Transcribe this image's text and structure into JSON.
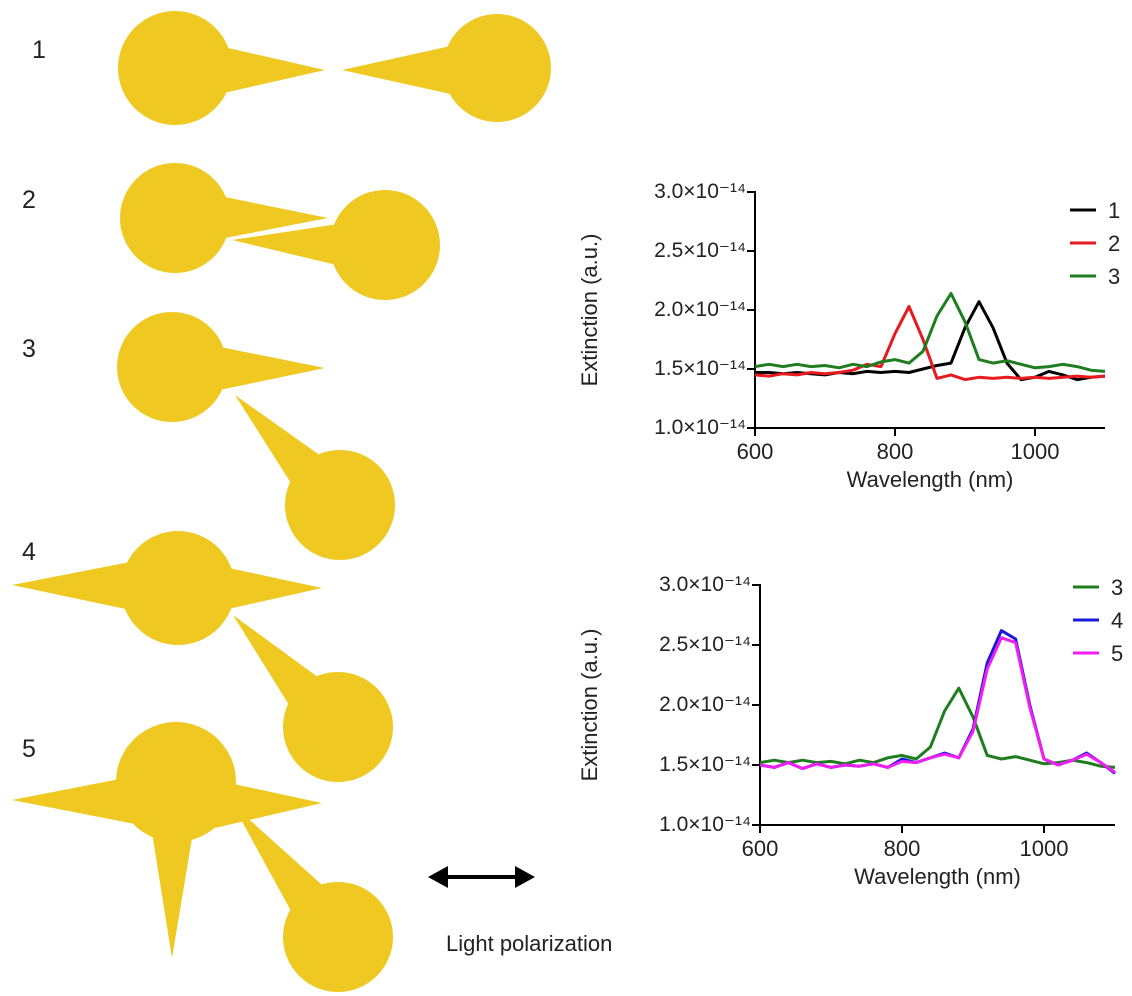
{
  "structures": {
    "labels": [
      "1",
      "2",
      "3",
      "4",
      "5"
    ]
  },
  "polarization_label": "Light polarization",
  "chart_data": [
    {
      "type": "line",
      "xlabel": "Wavelength (nm)",
      "ylabel": "Extinction (a.u.)",
      "x": [
        600,
        620,
        640,
        660,
        680,
        700,
        720,
        740,
        760,
        780,
        800,
        820,
        840,
        860,
        880,
        900,
        920,
        940,
        960,
        980,
        1000,
        1020,
        1040,
        1060,
        1080,
        1100
      ],
      "xlim": [
        600,
        1100
      ],
      "xticks": [
        600,
        800,
        1000
      ],
      "ylim": [
        1e-14,
        3e-14
      ],
      "yticks": [
        {
          "value": 1e-14,
          "label": "1.0×10⁻¹⁴"
        },
        {
          "value": 1.5e-14,
          "label": "1.5×10⁻¹⁴"
        },
        {
          "value": 2e-14,
          "label": "2.0×10⁻¹⁴"
        },
        {
          "value": 2.5e-14,
          "label": "2.5×10⁻¹⁴"
        },
        {
          "value": 3e-14,
          "label": "3.0×10⁻¹⁴"
        }
      ],
      "series": [
        {
          "name": "1",
          "color": "#000000",
          "values": [
            1.47e-14,
            1.47e-14,
            1.46e-14,
            1.47e-14,
            1.46e-14,
            1.45e-14,
            1.47e-14,
            1.46e-14,
            1.48e-14,
            1.47e-14,
            1.48e-14,
            1.47e-14,
            1.5e-14,
            1.53e-14,
            1.55e-14,
            1.85e-14,
            2.07e-14,
            1.85e-14,
            1.55e-14,
            1.41e-14,
            1.43e-14,
            1.48e-14,
            1.45e-14,
            1.41e-14,
            1.43e-14,
            1.44e-14
          ]
        },
        {
          "name": "2",
          "color": "#e8191f",
          "values": [
            1.45e-14,
            1.44e-14,
            1.46e-14,
            1.45e-14,
            1.47e-14,
            1.46e-14,
            1.47e-14,
            1.49e-14,
            1.54e-14,
            1.52e-14,
            1.8e-14,
            2.03e-14,
            1.75e-14,
            1.42e-14,
            1.45e-14,
            1.41e-14,
            1.43e-14,
            1.42e-14,
            1.43e-14,
            1.42e-14,
            1.43e-14,
            1.42e-14,
            1.43e-14,
            1.44e-14,
            1.43e-14,
            1.44e-14
          ]
        },
        {
          "name": "3",
          "color": "#1e7d1e",
          "values": [
            1.52e-14,
            1.54e-14,
            1.52e-14,
            1.54e-14,
            1.52e-14,
            1.53e-14,
            1.51e-14,
            1.54e-14,
            1.52e-14,
            1.56e-14,
            1.58e-14,
            1.55e-14,
            1.65e-14,
            1.95e-14,
            2.14e-14,
            1.9e-14,
            1.58e-14,
            1.55e-14,
            1.57e-14,
            1.54e-14,
            1.51e-14,
            1.52e-14,
            1.54e-14,
            1.52e-14,
            1.49e-14,
            1.48e-14
          ]
        }
      ]
    },
    {
      "type": "line",
      "xlabel": "Wavelength (nm)",
      "ylabel": "Extinction (a.u.)",
      "x": [
        600,
        620,
        640,
        660,
        680,
        700,
        720,
        740,
        760,
        780,
        800,
        820,
        840,
        860,
        880,
        900,
        920,
        940,
        960,
        980,
        1000,
        1020,
        1040,
        1060,
        1080,
        1100
      ],
      "xlim": [
        600,
        1100
      ],
      "xticks": [
        600,
        800,
        1000
      ],
      "ylim": [
        1e-14,
        3e-14
      ],
      "yticks": [
        {
          "value": 1e-14,
          "label": "1.0×10⁻¹⁴"
        },
        {
          "value": 1.5e-14,
          "label": "1.5×10⁻¹⁴"
        },
        {
          "value": 2e-14,
          "label": "2.0×10⁻¹⁴"
        },
        {
          "value": 2.5e-14,
          "label": "2.5×10⁻¹⁴"
        },
        {
          "value": 3e-14,
          "label": "3.0×10⁻¹⁴"
        }
      ],
      "series": [
        {
          "name": "3",
          "color": "#1e7d1e",
          "values": [
            1.52e-14,
            1.54e-14,
            1.52e-14,
            1.54e-14,
            1.52e-14,
            1.53e-14,
            1.51e-14,
            1.54e-14,
            1.52e-14,
            1.56e-14,
            1.58e-14,
            1.55e-14,
            1.65e-14,
            1.95e-14,
            2.14e-14,
            1.9e-14,
            1.58e-14,
            1.55e-14,
            1.57e-14,
            1.54e-14,
            1.51e-14,
            1.52e-14,
            1.54e-14,
            1.52e-14,
            1.49e-14,
            1.48e-14
          ]
        },
        {
          "name": "4",
          "color": "#1a1adc",
          "values": [
            1.5e-14,
            1.48e-14,
            1.52e-14,
            1.47e-14,
            1.51e-14,
            1.48e-14,
            1.5e-14,
            1.49e-14,
            1.51e-14,
            1.48e-14,
            1.55e-14,
            1.52e-14,
            1.56e-14,
            1.6e-14,
            1.56e-14,
            1.8e-14,
            2.35e-14,
            2.62e-14,
            2.55e-14,
            2e-14,
            1.55e-14,
            1.5e-14,
            1.54e-14,
            1.6e-14,
            1.52e-14,
            1.43e-14
          ]
        },
        {
          "name": "5",
          "color": "#f01ef0",
          "values": [
            1.5e-14,
            1.48e-14,
            1.52e-14,
            1.47e-14,
            1.51e-14,
            1.48e-14,
            1.5e-14,
            1.49e-14,
            1.51e-14,
            1.48e-14,
            1.53e-14,
            1.52e-14,
            1.56e-14,
            1.59e-14,
            1.56e-14,
            1.78e-14,
            2.3e-14,
            2.56e-14,
            2.52e-14,
            1.98e-14,
            1.55e-14,
            1.5e-14,
            1.54e-14,
            1.59e-14,
            1.52e-14,
            1.44e-14
          ]
        }
      ]
    }
  ]
}
